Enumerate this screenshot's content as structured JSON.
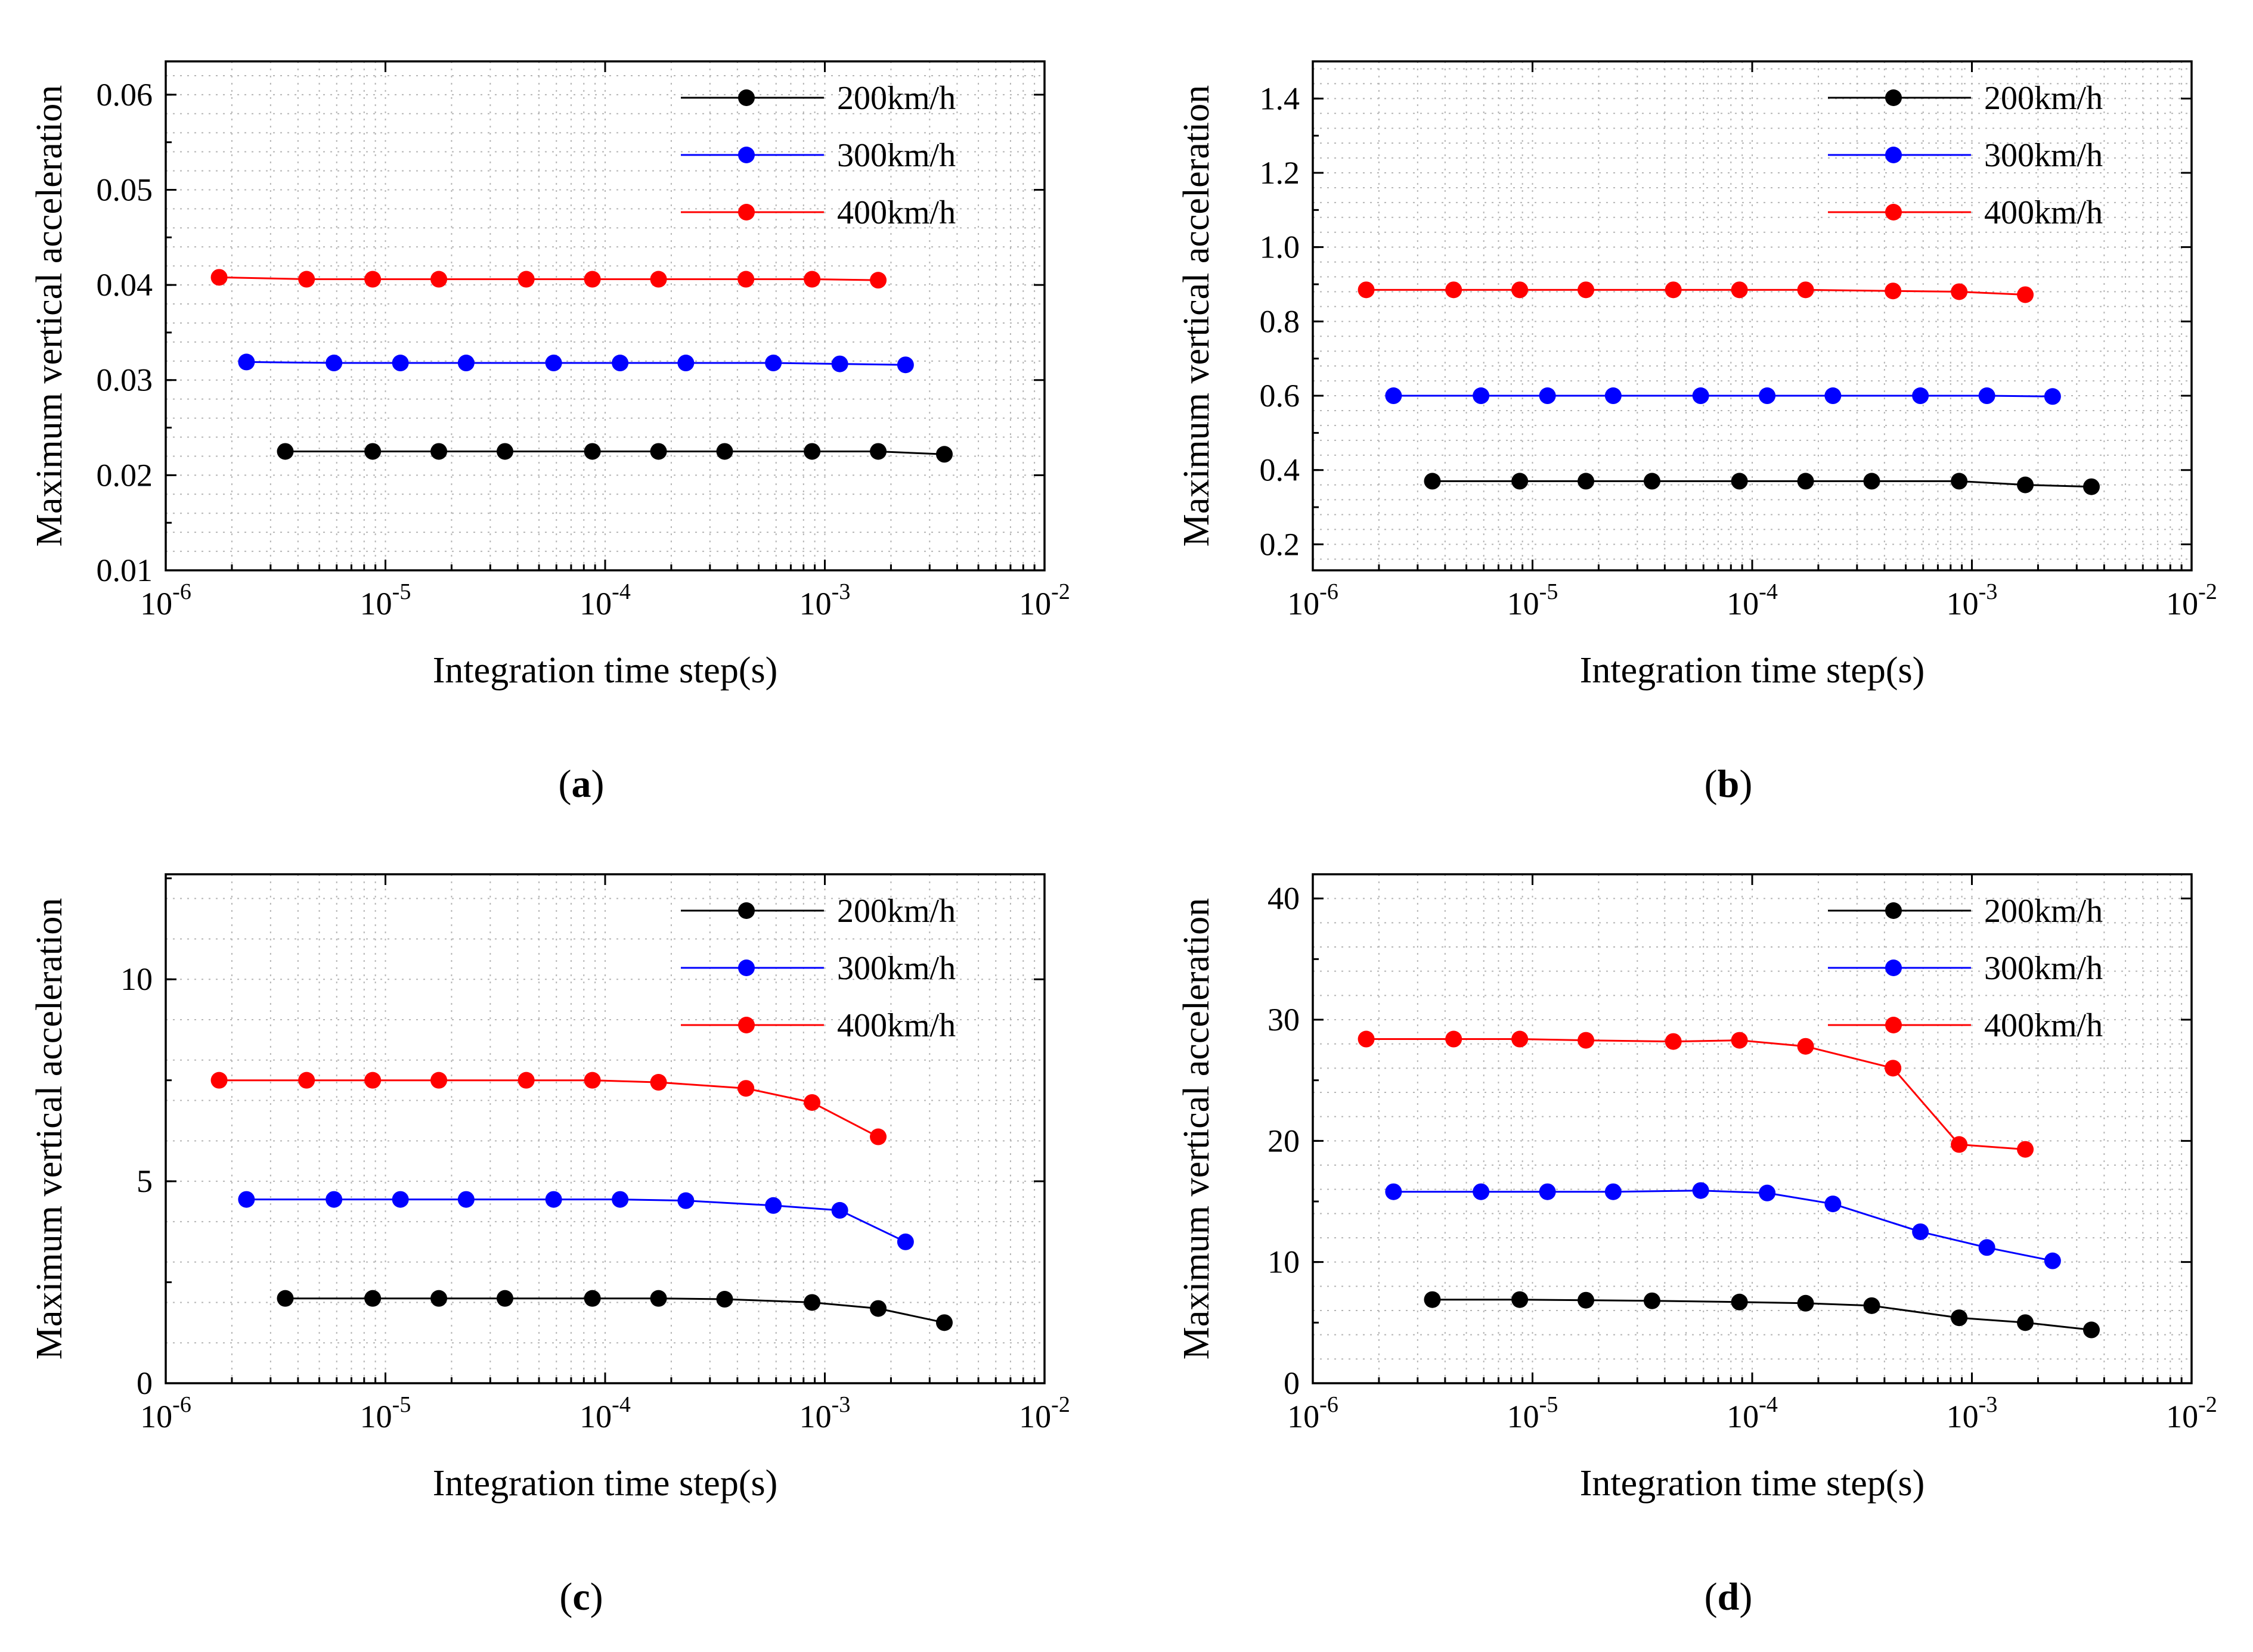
{
  "chart_data": [
    {
      "type": "line",
      "panel": "a",
      "caption": "(a)",
      "caption_letter": "a",
      "xlabel": "Integration time step(s)",
      "ylabel": "Maximum vertical acceleration",
      "xscale": "log",
      "xlim": [
        1e-06,
        0.01
      ],
      "ylim": [
        0.01,
        0.0635
      ],
      "yticks": [
        0.01,
        0.02,
        0.03,
        0.04,
        0.05,
        0.06
      ],
      "ytick_labels": [
        "0.01",
        "0.02",
        "0.03",
        "0.04",
        "0.05",
        "0.06"
      ],
      "xticks": [
        {
          "value": 1e-06,
          "base": "10",
          "exp": "-6"
        },
        {
          "value": 1e-05,
          "base": "10",
          "exp": "-5"
        },
        {
          "value": 0.0001,
          "base": "10",
          "exp": "-4"
        },
        {
          "value": 0.001,
          "base": "10",
          "exp": "-3"
        },
        {
          "value": 0.01,
          "base": "10",
          "exp": "-2"
        }
      ],
      "grid": true,
      "legend_position": "top-right",
      "series": [
        {
          "name": "200km/h",
          "color": "#000000",
          "x": [
            3.5e-06,
            8.75e-06,
            1.75e-05,
            3.5e-05,
            8.75e-05,
            0.000175,
            0.00035,
            0.000875,
            0.00175,
            0.0035
          ],
          "y": [
            0.0225,
            0.0225,
            0.0225,
            0.0225,
            0.0225,
            0.0225,
            0.0225,
            0.0225,
            0.0225,
            0.0222
          ]
        },
        {
          "name": "300km/h",
          "color": "#0000ff",
          "x": [
            2.33e-06,
            5.83e-06,
            1.17e-05,
            2.33e-05,
            5.83e-05,
            0.000117,
            0.000233,
            0.000583,
            0.00117,
            0.00233
          ],
          "y": [
            0.0319,
            0.0318,
            0.0318,
            0.0318,
            0.0318,
            0.0318,
            0.0318,
            0.0318,
            0.0317,
            0.0316
          ]
        },
        {
          "name": "400km/h",
          "color": "#ff0000",
          "x": [
            1.75e-06,
            4.375e-06,
            8.75e-06,
            1.75e-05,
            4.375e-05,
            8.75e-05,
            0.000175,
            0.0004375,
            0.000875,
            0.00175
          ],
          "y": [
            0.0408,
            0.0406,
            0.0406,
            0.0406,
            0.0406,
            0.0406,
            0.0406,
            0.0406,
            0.0406,
            0.0405
          ]
        }
      ]
    },
    {
      "type": "line",
      "panel": "b",
      "caption": "(b)",
      "caption_letter": "b",
      "xlabel": "Integration time step(s)",
      "ylabel": "Maximum vertical acceleration",
      "xscale": "log",
      "xlim": [
        1e-06,
        0.01
      ],
      "ylim": [
        0.13,
        1.5
      ],
      "yticks": [
        0.2,
        0.4,
        0.6,
        0.8,
        1.0,
        1.2,
        1.4
      ],
      "ytick_labels": [
        "0.2",
        "0.4",
        "0.6",
        "0.8",
        "1.0",
        "1.2",
        "1.4"
      ],
      "xticks": [
        {
          "value": 1e-06,
          "base": "10",
          "exp": "-6"
        },
        {
          "value": 1e-05,
          "base": "10",
          "exp": "-5"
        },
        {
          "value": 0.0001,
          "base": "10",
          "exp": "-4"
        },
        {
          "value": 0.001,
          "base": "10",
          "exp": "-3"
        },
        {
          "value": 0.01,
          "base": "10",
          "exp": "-2"
        }
      ],
      "grid": true,
      "legend_position": "top-right",
      "series": [
        {
          "name": "200km/h",
          "color": "#000000",
          "x": [
            3.5e-06,
            8.75e-06,
            1.75e-05,
            3.5e-05,
            8.75e-05,
            0.000175,
            0.00035,
            0.000875,
            0.00175,
            0.0035
          ],
          "y": [
            0.37,
            0.37,
            0.37,
            0.37,
            0.37,
            0.37,
            0.37,
            0.37,
            0.36,
            0.355
          ]
        },
        {
          "name": "300km/h",
          "color": "#0000ff",
          "x": [
            2.33e-06,
            5.83e-06,
            1.17e-05,
            2.33e-05,
            5.83e-05,
            0.000117,
            0.000233,
            0.000583,
            0.00117,
            0.00233
          ],
          "y": [
            0.6,
            0.6,
            0.6,
            0.6,
            0.6,
            0.6,
            0.6,
            0.6,
            0.6,
            0.598
          ]
        },
        {
          "name": "400km/h",
          "color": "#ff0000",
          "x": [
            1.75e-06,
            4.375e-06,
            8.75e-06,
            1.75e-05,
            4.375e-05,
            8.75e-05,
            0.000175,
            0.0004375,
            0.000875,
            0.00175
          ],
          "y": [
            0.885,
            0.885,
            0.885,
            0.885,
            0.885,
            0.885,
            0.885,
            0.882,
            0.88,
            0.872
          ]
        }
      ]
    },
    {
      "type": "line",
      "panel": "c",
      "caption": "(c)",
      "caption_letter": "c",
      "xlabel": "Integration time step(s)",
      "ylabel": "Maximum vertical acceleration",
      "xscale": "log",
      "xlim": [
        1e-06,
        0.01
      ],
      "ylim": [
        0,
        12.6
      ],
      "yticks": [
        0,
        5,
        10
      ],
      "ytick_labels": [
        "0",
        "5",
        "10"
      ],
      "xticks": [
        {
          "value": 1e-06,
          "base": "10",
          "exp": "-6"
        },
        {
          "value": 1e-05,
          "base": "10",
          "exp": "-5"
        },
        {
          "value": 0.0001,
          "base": "10",
          "exp": "-4"
        },
        {
          "value": 0.001,
          "base": "10",
          "exp": "-3"
        },
        {
          "value": 0.01,
          "base": "10",
          "exp": "-2"
        }
      ],
      "grid": true,
      "legend_position": "top-right",
      "series": [
        {
          "name": "200km/h",
          "color": "#000000",
          "x": [
            3.5e-06,
            8.75e-06,
            1.75e-05,
            3.5e-05,
            8.75e-05,
            0.000175,
            0.00035,
            0.000875,
            0.00175,
            0.0035
          ],
          "y": [
            2.1,
            2.1,
            2.1,
            2.1,
            2.1,
            2.1,
            2.08,
            2.0,
            1.85,
            1.5
          ]
        },
        {
          "name": "300km/h",
          "color": "#0000ff",
          "x": [
            2.33e-06,
            5.83e-06,
            1.17e-05,
            2.33e-05,
            5.83e-05,
            0.000117,
            0.000233,
            0.000583,
            0.00117,
            0.00233
          ],
          "y": [
            4.55,
            4.55,
            4.55,
            4.55,
            4.55,
            4.55,
            4.52,
            4.4,
            4.28,
            3.5
          ]
        },
        {
          "name": "400km/h",
          "color": "#ff0000",
          "x": [
            1.75e-06,
            4.375e-06,
            8.75e-06,
            1.75e-05,
            4.375e-05,
            8.75e-05,
            0.000175,
            0.0004375,
            0.000875,
            0.00175
          ],
          "y": [
            7.5,
            7.5,
            7.5,
            7.5,
            7.5,
            7.5,
            7.45,
            7.3,
            6.95,
            6.1
          ]
        }
      ]
    },
    {
      "type": "line",
      "panel": "d",
      "caption": "(d)",
      "caption_letter": "d",
      "xlabel": "Integration time step(s)",
      "ylabel": "Maximum vertical acceleration",
      "xscale": "log",
      "xlim": [
        1e-06,
        0.01
      ],
      "ylim": [
        0,
        42
      ],
      "yticks": [
        0,
        10,
        20,
        30,
        40
      ],
      "ytick_labels": [
        "0",
        "10",
        "20",
        "30",
        "40"
      ],
      "xticks": [
        {
          "value": 1e-06,
          "base": "10",
          "exp": "-6"
        },
        {
          "value": 1e-05,
          "base": "10",
          "exp": "-5"
        },
        {
          "value": 0.0001,
          "base": "10",
          "exp": "-4"
        },
        {
          "value": 0.001,
          "base": "10",
          "exp": "-3"
        },
        {
          "value": 0.01,
          "base": "10",
          "exp": "-2"
        }
      ],
      "grid": true,
      "legend_position": "top-right",
      "series": [
        {
          "name": "200km/h",
          "color": "#000000",
          "x": [
            3.5e-06,
            8.75e-06,
            1.75e-05,
            3.5e-05,
            8.75e-05,
            0.000175,
            0.00035,
            0.000875,
            0.00175,
            0.0035
          ],
          "y": [
            6.9,
            6.9,
            6.85,
            6.8,
            6.7,
            6.6,
            6.4,
            5.4,
            5.0,
            4.4
          ]
        },
        {
          "name": "300km/h",
          "color": "#0000ff",
          "x": [
            2.33e-06,
            5.83e-06,
            1.17e-05,
            2.33e-05,
            5.83e-05,
            0.000117,
            0.000233,
            0.000583,
            0.00117,
            0.00233
          ],
          "y": [
            15.8,
            15.8,
            15.8,
            15.8,
            15.9,
            15.7,
            14.8,
            12.5,
            11.2,
            10.1
          ]
        },
        {
          "name": "400km/h",
          "color": "#ff0000",
          "x": [
            1.75e-06,
            4.375e-06,
            8.75e-06,
            1.75e-05,
            4.375e-05,
            8.75e-05,
            0.000175,
            0.0004375,
            0.000875,
            0.00175
          ],
          "y": [
            28.4,
            28.4,
            28.4,
            28.3,
            28.2,
            28.3,
            27.8,
            26.0,
            19.7,
            19.3
          ]
        }
      ]
    }
  ]
}
